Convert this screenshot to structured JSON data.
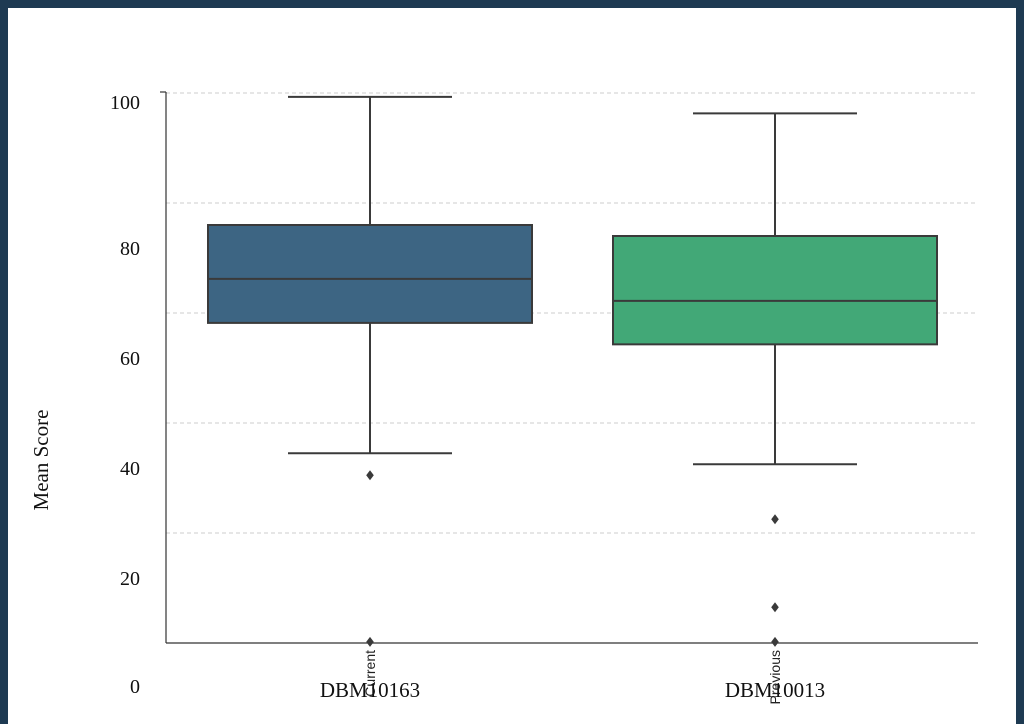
{
  "chart_data": {
    "type": "box",
    "ylabel": "Mean Score",
    "xlabel": "",
    "ylim": [
      0,
      100
    ],
    "y_tick_labels": [
      "0",
      "20",
      "40",
      "60",
      "80",
      "100"
    ],
    "grid": "dashed horizontal",
    "categories": [
      "DBM10163",
      "DBM10013"
    ],
    "overlapping_tick_labels": [
      "Current",
      "Previous"
    ],
    "boxes": [
      {
        "category": "DBM10163",
        "whisker_low": 34.5,
        "q1": 58.2,
        "median": 66.2,
        "q3": 76.0,
        "whisker_high": 99.3,
        "outliers": [
          30.5,
          0.2
        ],
        "color": "#3d6583"
      },
      {
        "category": "DBM10013",
        "whisker_low": 32.5,
        "q1": 54.3,
        "median": 62.2,
        "q3": 74.0,
        "whisker_high": 96.3,
        "outliers": [
          22.5,
          6.5,
          0.2
        ],
        "color": "#42a877"
      }
    ]
  },
  "colors": {
    "frame": "#1e3a52",
    "axis": "#333333",
    "grid": "#cccccc",
    "line": "#3a3a3a"
  }
}
